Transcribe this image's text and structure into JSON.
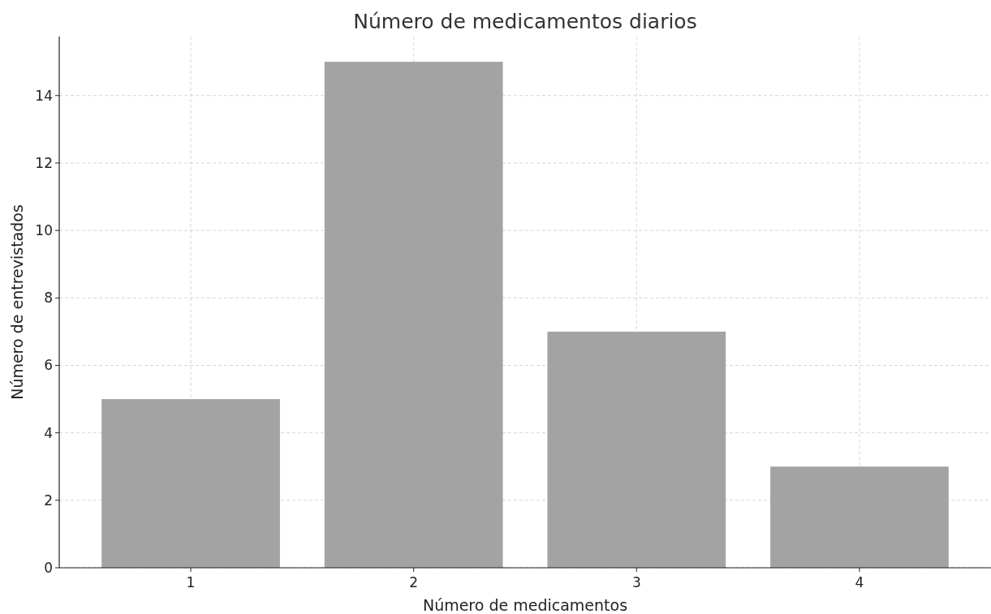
{
  "chart_data": {
    "type": "bar",
    "title": "Número de medicamentos diarios",
    "xlabel": "Número de medicamentos",
    "ylabel": "Número de entrevistados",
    "categories": [
      "1",
      "2",
      "3",
      "4"
    ],
    "values": [
      5,
      15,
      7,
      3
    ],
    "color": "#a3a3a3",
    "ylim": [
      0,
      15.75
    ],
    "yticks": [
      0,
      2,
      4,
      6,
      8,
      10,
      12,
      14
    ],
    "grid": true
  }
}
